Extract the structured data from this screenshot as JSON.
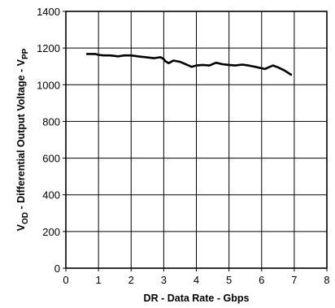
{
  "chart_data": {
    "type": "line",
    "xlabel": "DR - Data Rate - Gbps",
    "ylabel": {
      "prefix": "V",
      "prefix_sub": "OD",
      "main": " - Differential Output Voltage - V",
      "suffix_sub": "PP"
    },
    "xlim": [
      0,
      8
    ],
    "ylim": [
      0,
      1400
    ],
    "x_ticks": [
      0,
      1,
      2,
      3,
      4,
      5,
      6,
      7,
      8
    ],
    "y_ticks": [
      0,
      200,
      400,
      600,
      800,
      1000,
      1200,
      1400
    ],
    "grid": true,
    "series": [
      {
        "x": [
          0.65,
          0.9,
          1.0,
          1.15,
          1.35,
          1.6,
          1.8,
          2.0,
          2.2,
          2.45,
          2.7,
          2.9,
          3.0,
          3.05,
          3.15,
          3.3,
          3.5,
          3.7,
          3.85,
          4.0,
          4.2,
          4.4,
          4.6,
          4.8,
          5.0,
          5.2,
          5.4,
          5.6,
          5.8,
          6.0,
          6.1,
          6.25,
          6.35,
          6.5,
          6.7,
          6.9
        ],
        "y": [
          1168,
          1168,
          1163,
          1160,
          1160,
          1155,
          1160,
          1160,
          1155,
          1150,
          1145,
          1150,
          1140,
          1128,
          1118,
          1132,
          1125,
          1110,
          1098,
          1105,
          1108,
          1105,
          1120,
          1112,
          1108,
          1105,
          1110,
          1105,
          1098,
          1090,
          1086,
          1098,
          1105,
          1095,
          1078,
          1055
        ]
      }
    ]
  }
}
